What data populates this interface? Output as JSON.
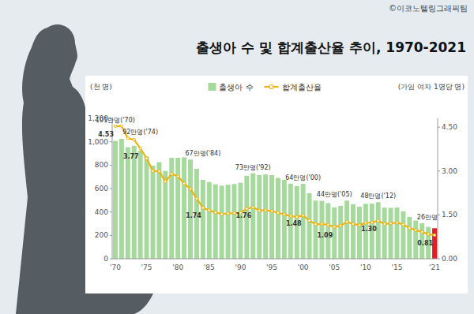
{
  "chart_data": {
    "type": "bar",
    "title": "출생아 수 및 합계출산율 추이, 1970-2021",
    "source": "©이코노텔링그래픽팀",
    "y_label": "(천 명)",
    "y2_label": "(가임 여자 1명당 명)",
    "categories": [
      "'70",
      null,
      null,
      null,
      null,
      "'75",
      null,
      null,
      null,
      null,
      "'80",
      null,
      null,
      null,
      null,
      "'85",
      null,
      null,
      null,
      null,
      "'90",
      null,
      null,
      null,
      null,
      "'95",
      null,
      null,
      null,
      null,
      "'00",
      null,
      null,
      null,
      null,
      "'05",
      null,
      null,
      null,
      null,
      "'10",
      null,
      null,
      null,
      null,
      "'15",
      null,
      null,
      null,
      null,
      null,
      "'21"
    ],
    "series": [
      {
        "name": "출생아 수",
        "type": "bar",
        "color": "#a6d99c",
        "colors": [
          "#a6d99c",
          "#a6d99c",
          "#a6d99c",
          "#a6d99c",
          "#a6d99c",
          "#a6d99c",
          "#a6d99c",
          "#a6d99c",
          "#a6d99c",
          "#a6d99c",
          "#a6d99c",
          "#a6d99c",
          "#a6d99c",
          "#a6d99c",
          "#a6d99c",
          "#a6d99c",
          "#a6d99c",
          "#a6d99c",
          "#a6d99c",
          "#a6d99c",
          "#a6d99c",
          "#a6d99c",
          "#a6d99c",
          "#a6d99c",
          "#a6d99c",
          "#a6d99c",
          "#a6d99c",
          "#a6d99c",
          "#a6d99c",
          "#a6d99c",
          "#a6d99c",
          "#a6d99c",
          "#a6d99c",
          "#a6d99c",
          "#a6d99c",
          "#a6d99c",
          "#a6d99c",
          "#a6d99c",
          "#a6d99c",
          "#a6d99c",
          "#a6d99c",
          "#a6d99c",
          "#a6d99c",
          "#a6d99c",
          "#a6d99c",
          "#a6d99c",
          "#a6d99c",
          "#a6d99c",
          "#a6d99c",
          "#a6d99c",
          "#a6d99c",
          "#e31e24"
        ],
        "values": [
          1007,
          1025,
          953,
          966,
          923,
          874,
          796,
          825,
          751,
          863,
          863,
          867,
          848,
          769,
          674,
          656,
          636,
          624,
          633,
          639,
          650,
          709,
          731,
          716,
          721,
          715,
          691,
          675,
          642,
          621,
          640,
          560,
          497,
          495,
          476,
          439,
          452,
          497,
          466,
          445,
          470,
          471,
          484,
          437,
          435,
          438,
          406,
          358,
          327,
          303,
          272,
          261
        ],
        "value_labels": [
          "101만명('70)",
          null,
          null,
          null,
          "92만명('74)",
          null,
          null,
          null,
          null,
          null,
          null,
          null,
          null,
          null,
          "67만명('84)",
          null,
          null,
          null,
          null,
          null,
          null,
          null,
          "73만명('92)",
          null,
          null,
          null,
          null,
          null,
          null,
          null,
          "64만명('00)",
          null,
          null,
          null,
          null,
          "44만명('05)",
          null,
          null,
          null,
          null,
          null,
          null,
          "48만명('12)",
          null,
          null,
          null,
          null,
          null,
          null,
          null,
          null,
          "26만명"
        ]
      },
      {
        "name": "합계출산율",
        "type": "line",
        "axis": "y2",
        "color": "#f0b30c",
        "marker": "circle",
        "values": [
          4.53,
          4.54,
          4.12,
          4.07,
          3.77,
          3.43,
          3,
          2.99,
          2.64,
          2.9,
          2.82,
          2.57,
          2.39,
          2.06,
          1.74,
          1.66,
          1.58,
          1.53,
          1.55,
          1.56,
          1.57,
          1.71,
          1.76,
          1.65,
          1.66,
          1.63,
          1.57,
          1.52,
          1.46,
          1.43,
          1.48,
          1.31,
          1.18,
          1.19,
          1.16,
          1.09,
          1.13,
          1.26,
          1.19,
          1.15,
          1.23,
          1.24,
          1.3,
          1.19,
          1.21,
          1.24,
          1.17,
          1.05,
          0.98,
          0.92,
          0.84,
          0.81
        ],
        "value_labels": [
          "4.53",
          null,
          null,
          null,
          "3.77",
          null,
          null,
          null,
          null,
          null,
          null,
          null,
          null,
          null,
          "1.74",
          null,
          null,
          null,
          null,
          null,
          null,
          null,
          "1.76",
          null,
          null,
          null,
          null,
          null,
          null,
          null,
          "1.48",
          null,
          null,
          null,
          null,
          "1.09",
          null,
          null,
          null,
          null,
          null,
          null,
          "1.30",
          null,
          null,
          null,
          null,
          null,
          null,
          null,
          null,
          "0.81"
        ]
      }
    ],
    "ylim": [
      0,
      1200
    ],
    "yticks": [
      0,
      200,
      400,
      600,
      800,
      {
        "value": 1000,
        "label": "1,000"
      },
      {
        "value": 1200,
        "label": "1,200"
      }
    ],
    "y2lim": [
      0,
      4.8
    ],
    "y2ticks": [
      {
        "value": 0,
        "label": "0.00"
      },
      {
        "value": 1.5,
        "label": "1.50"
      },
      {
        "value": 3,
        "label": "3.00"
      },
      {
        "value": 4.5,
        "label": "4.50"
      }
    ],
    "grid": false,
    "legend": "top",
    "data_labels": true
  }
}
